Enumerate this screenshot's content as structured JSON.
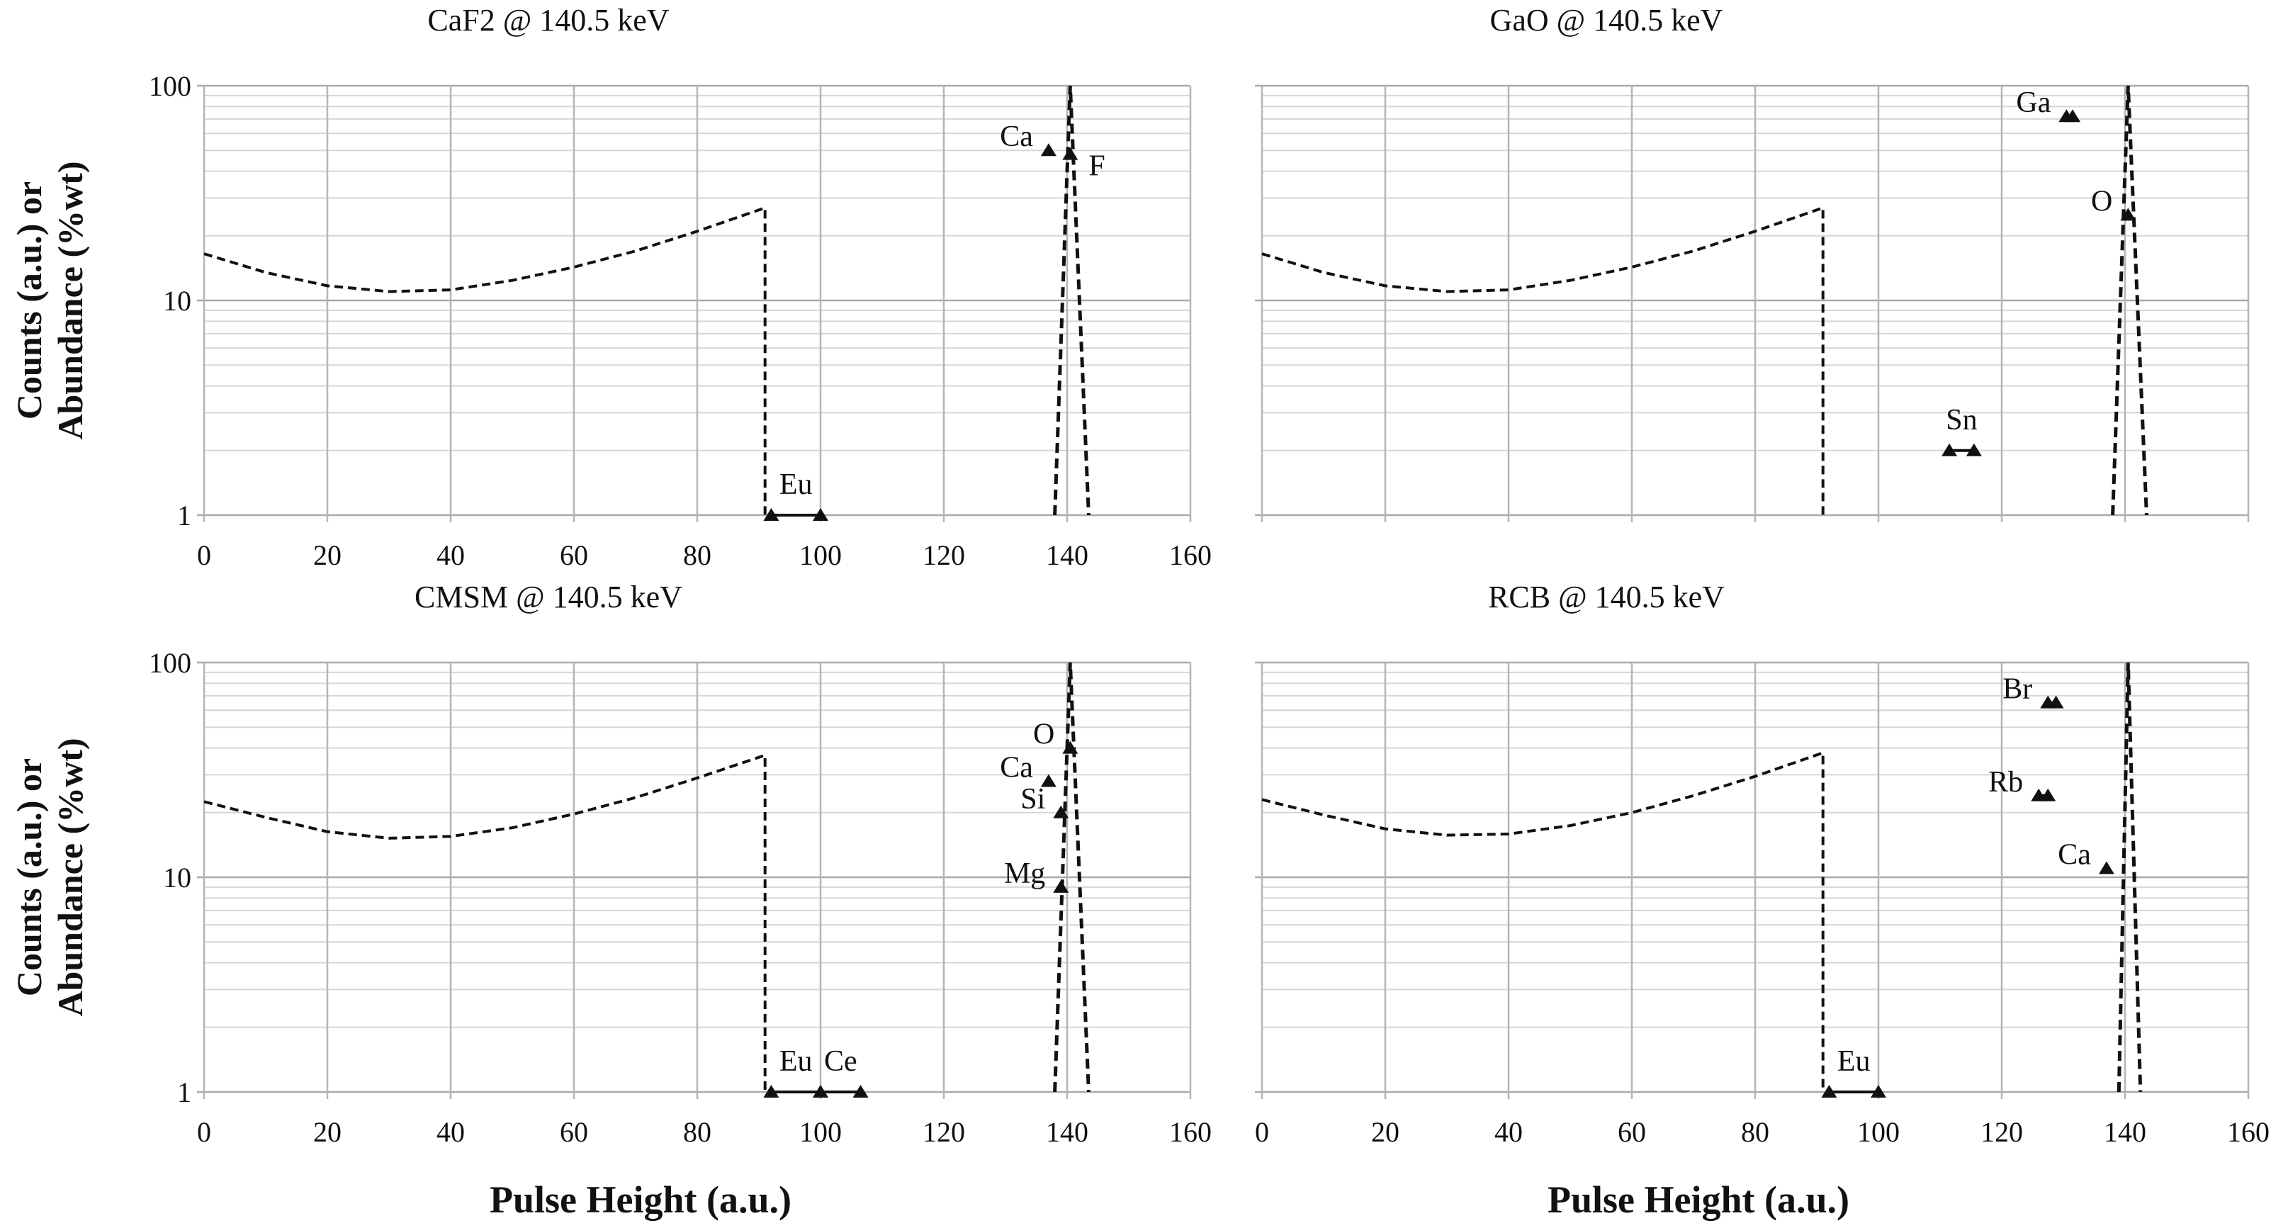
{
  "chart_data": [
    {
      "type": "line",
      "title": "CaF2 @ 140.5 keV",
      "xlabel": "",
      "ylabel": "Counts (a.u.) or Abundance (%wt)",
      "xlim": [
        0,
        160
      ],
      "ylim": [
        1,
        100
      ],
      "yscale": "log",
      "grid": true,
      "xticks": [
        "0",
        "20",
        "40",
        "60",
        "80",
        "100",
        "120",
        "140",
        "160"
      ],
      "yticks": [
        "1",
        "10",
        "100"
      ],
      "spectrum": [
        [
          0,
          16.5
        ],
        [
          10,
          13.5
        ],
        [
          20,
          11.7
        ],
        [
          30,
          11
        ],
        [
          40,
          11.2
        ],
        [
          50,
          12.4
        ],
        [
          60,
          14.3
        ],
        [
          70,
          17
        ],
        [
          80,
          21
        ],
        [
          91,
          27
        ],
        [
          91,
          1
        ]
      ],
      "peak": [
        [
          138,
          1
        ],
        [
          140.5,
          100
        ],
        [
          143.5,
          1
        ]
      ],
      "markers": [
        {
          "label": "Ca",
          "points": [
            [
              137,
              50
            ]
          ],
          "label_side": "left"
        },
        {
          "label": "F",
          "points": [
            [
              140.5,
              48
            ]
          ],
          "label_side": "right"
        },
        {
          "label": "Eu",
          "points": [
            [
              92,
              1
            ],
            [
              100,
              1
            ]
          ],
          "label_side": "top"
        }
      ]
    },
    {
      "type": "line",
      "title": "GaO @ 140.5 keV",
      "xlabel": "",
      "ylabel": "",
      "xlim": [
        0,
        160
      ],
      "ylim": [
        1,
        100
      ],
      "yscale": "log",
      "grid": true,
      "xticks": [],
      "yticks": [],
      "spectrum": [
        [
          0,
          16.5
        ],
        [
          10,
          13.5
        ],
        [
          20,
          11.7
        ],
        [
          30,
          11
        ],
        [
          40,
          11.2
        ],
        [
          50,
          12.4
        ],
        [
          60,
          14.3
        ],
        [
          70,
          17
        ],
        [
          80,
          21
        ],
        [
          91,
          27
        ],
        [
          91,
          1
        ]
      ],
      "peak": [
        [
          138,
          1
        ],
        [
          140.5,
          100
        ],
        [
          143.5,
          1
        ]
      ],
      "markers": [
        {
          "label": "Ga",
          "points": [
            [
              130.5,
              72
            ],
            [
              131.5,
              72
            ]
          ],
          "label_side": "left"
        },
        {
          "label": "O",
          "points": [
            [
              140.5,
              25
            ]
          ],
          "label_side": "left"
        },
        {
          "label": "Sn",
          "points": [
            [
              111.5,
              2
            ],
            [
              115.5,
              2
            ]
          ],
          "label_side": "top"
        }
      ]
    },
    {
      "type": "line",
      "title": "CMSM @ 140.5 keV",
      "xlabel": "Pulse Height (a.u.)",
      "ylabel": "Counts (a.u.) or Abundance (%wt)",
      "xlim": [
        0,
        160
      ],
      "ylim": [
        1,
        100
      ],
      "yscale": "log",
      "grid": true,
      "xticks": [
        "0",
        "20",
        "40",
        "60",
        "80",
        "100",
        "120",
        "140",
        "160"
      ],
      "yticks": [
        "1",
        "10",
        "100"
      ],
      "spectrum": [
        [
          0,
          22.5
        ],
        [
          10,
          19
        ],
        [
          20,
          16.3
        ],
        [
          30,
          15.2
        ],
        [
          40,
          15.5
        ],
        [
          50,
          17
        ],
        [
          60,
          19.7
        ],
        [
          70,
          23.5
        ],
        [
          80,
          29
        ],
        [
          91,
          37
        ],
        [
          91,
          1
        ]
      ],
      "peak": [
        [
          138,
          1
        ],
        [
          140.5,
          100
        ],
        [
          143.5,
          1
        ]
      ],
      "markers": [
        {
          "label": "O",
          "points": [
            [
              140.5,
              40
            ]
          ],
          "label_side": "left"
        },
        {
          "label": "Ca",
          "points": [
            [
              137,
              28
            ]
          ],
          "label_side": "left"
        },
        {
          "label": "Si",
          "points": [
            [
              139,
              20
            ]
          ],
          "label_side": "left"
        },
        {
          "label": "Mg",
          "points": [
            [
              139,
              9
            ]
          ],
          "label_side": "left"
        },
        {
          "label": "Eu",
          "points": [
            [
              92,
              1
            ],
            [
              100,
              1
            ]
          ],
          "label_side": "top"
        },
        {
          "label": "Ce",
          "points": [
            [
              100,
              1
            ],
            [
              106.5,
              1
            ]
          ],
          "label_side": "top"
        }
      ]
    },
    {
      "type": "line",
      "title": "RCB @ 140.5 keV",
      "xlabel": "Pulse Height (a.u.)",
      "ylabel": "",
      "xlim": [
        0,
        160
      ],
      "ylim": [
        1,
        100
      ],
      "yscale": "log",
      "grid": true,
      "xticks": [
        "0",
        "20",
        "40",
        "60",
        "80",
        "100",
        "120",
        "140",
        "160"
      ],
      "yticks": [],
      "spectrum": [
        [
          0,
          23
        ],
        [
          10,
          19.5
        ],
        [
          20,
          16.8
        ],
        [
          30,
          15.7
        ],
        [
          40,
          15.9
        ],
        [
          50,
          17.4
        ],
        [
          60,
          20
        ],
        [
          70,
          24
        ],
        [
          80,
          29.5
        ],
        [
          91,
          38
        ],
        [
          91,
          1
        ]
      ],
      "peak": [
        [
          139,
          1
        ],
        [
          140.5,
          100
        ],
        [
          142.5,
          1
        ]
      ],
      "markers": [
        {
          "label": "Br",
          "points": [
            [
              127.5,
              65
            ],
            [
              128.8,
              65
            ]
          ],
          "label_side": "left"
        },
        {
          "label": "Rb",
          "points": [
            [
              126,
              24
            ],
            [
              127.5,
              24
            ]
          ],
          "label_side": "left"
        },
        {
          "label": "Ca",
          "points": [
            [
              137,
              11
            ]
          ],
          "label_side": "left"
        },
        {
          "label": "Eu",
          "points": [
            [
              92,
              1
            ],
            [
              100,
              1
            ]
          ],
          "label_side": "top"
        }
      ]
    }
  ]
}
